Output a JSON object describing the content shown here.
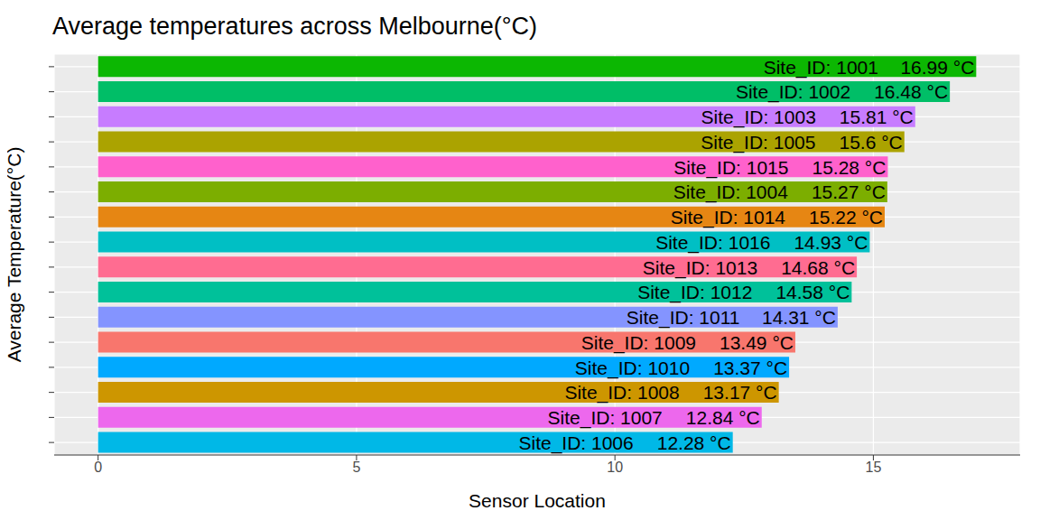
{
  "chart_data": {
    "type": "bar",
    "title": "Average temperatures across Melbourne(°C)",
    "x_label": "Sensor Location",
    "y_label": "Average Temperature(°C)",
    "orientation": "horizontal",
    "categories": [
      "Site_ID: 1001",
      "Site_ID: 1002",
      "Site_ID: 1003",
      "Site_ID: 1005",
      "Site_ID: 1015",
      "Site_ID: 1004",
      "Site_ID: 1014",
      "Site_ID: 1016",
      "Site_ID: 1013",
      "Site_ID: 1012",
      "Site_ID: 1011",
      "Site_ID: 1009",
      "Site_ID: 1010",
      "Site_ID: 1008",
      "Site_ID: 1007",
      "Site_ID: 1006"
    ],
    "values": [
      16.99,
      16.48,
      15.81,
      15.6,
      15.28,
      15.27,
      15.22,
      14.93,
      14.68,
      14.58,
      14.31,
      13.49,
      13.37,
      13.17,
      12.84,
      12.28
    ],
    "value_labels": [
      "16.99 °C",
      "16.48 °C",
      "15.81 °C",
      "15.6 °C",
      "15.28 °C",
      "15.27 °C",
      "15.22 °C",
      "14.93 °C",
      "14.68 °C",
      "14.58 °C",
      "14.31 °C",
      "13.49 °C",
      "13.37 °C",
      "13.17 °C",
      "12.84 °C",
      "12.28 °C"
    ],
    "colors": [
      "#0CB702",
      "#00BE67",
      "#C77CFF",
      "#ABA300",
      "#FF61CC",
      "#7CAE00",
      "#E68613",
      "#00BFC4",
      "#FF6C91",
      "#00C19A",
      "#8494FF",
      "#F8766D",
      "#00A9FF",
      "#CD9600",
      "#ED68ED",
      "#00B8E7"
    ],
    "xlim": [
      -0.85,
      17.84
    ],
    "xticks": [
      0,
      5,
      10,
      15
    ],
    "grid": true,
    "data_labels": true,
    "tick_labels": "x"
  }
}
